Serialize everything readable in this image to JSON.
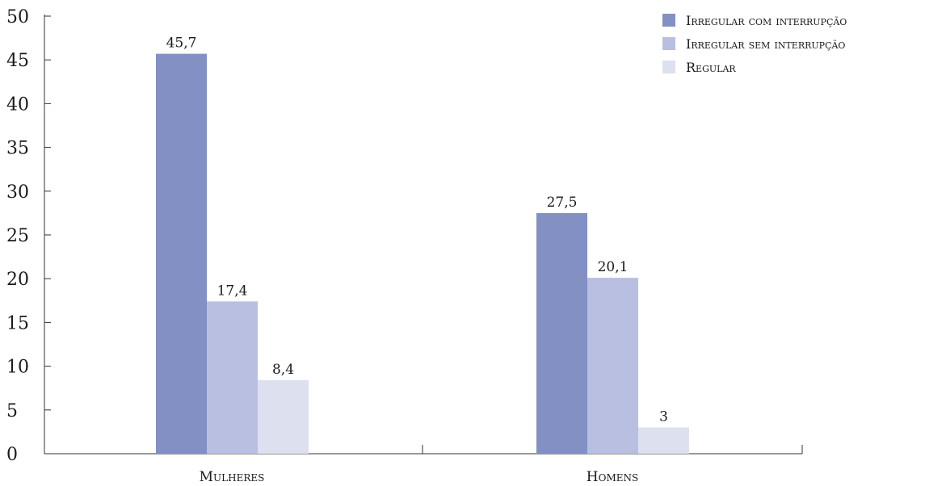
{
  "chart_data": {
    "type": "bar",
    "categories": [
      "Mulheres",
      "Homens"
    ],
    "series": [
      {
        "name": "Irregular com interrupção",
        "values": [
          45.7,
          27.5
        ],
        "labels": [
          "45,7",
          "27,5"
        ],
        "color": "#8390c4"
      },
      {
        "name": "Irregular sem interrupção",
        "values": [
          17.4,
          20.1
        ],
        "labels": [
          "17,4",
          "20,1"
        ],
        "color": "#b9bfe1"
      },
      {
        "name": "Regular",
        "values": [
          8.4,
          3
        ],
        "labels": [
          "8,4",
          "3"
        ],
        "color": "#dde0ef"
      }
    ],
    "yticks": [
      "0",
      "5",
      "10",
      "15",
      "20",
      "25",
      "30",
      "35",
      "40",
      "45",
      "50"
    ],
    "ylim": [
      0,
      50
    ],
    "legend_position": "top-right",
    "grid": false
  }
}
